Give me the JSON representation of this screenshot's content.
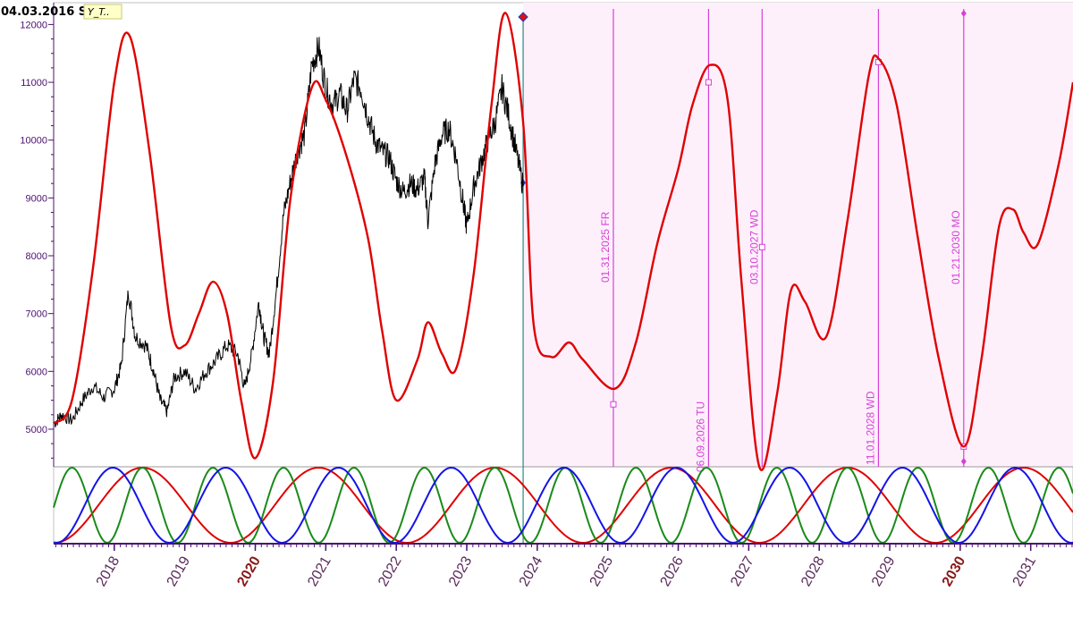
{
  "header": {
    "date_label": "04.03.2016 SU",
    "tag_label": "Y_T.."
  },
  "colors": {
    "price": "#000000",
    "cycle_composite": "#e00000",
    "wave_red": "#e00000",
    "wave_green": "#1a8a1a",
    "wave_blue": "#1414e6",
    "forecast_bg": "#fdf0fb",
    "marker_line": "#d640d6",
    "axis": "#4a1070",
    "now_line": "#2a8a8a"
  },
  "chart_data": {
    "type": "line",
    "x_axis": {
      "type": "time",
      "range": [
        2017.14,
        2031.6
      ],
      "ticks": [
        "2018",
        "2019",
        "2020",
        "2021",
        "2022",
        "2023",
        "2024",
        "2025",
        "2026",
        "2027",
        "2028",
        "2029",
        "2030",
        "2031"
      ],
      "bold_ticks": [
        "2020",
        "2030"
      ]
    },
    "y_axis": {
      "range": [
        4350,
        12300
      ],
      "ticks": [
        5000,
        6000,
        7000,
        8000,
        9000,
        10000,
        11000,
        12000
      ]
    },
    "grid": false,
    "now_x": 2023.8,
    "forecast_shaded_from": 2023.8,
    "series": [
      {
        "kind": "price",
        "points": [
          [
            2017.15,
            5100
          ],
          [
            2017.25,
            5250
          ],
          [
            2017.4,
            5150
          ],
          [
            2017.55,
            5500
          ],
          [
            2017.7,
            5750
          ],
          [
            2017.85,
            5550
          ],
          [
            2018.0,
            5700
          ],
          [
            2018.1,
            6100
          ],
          [
            2018.2,
            7400
          ],
          [
            2018.3,
            6600
          ],
          [
            2018.45,
            6450
          ],
          [
            2018.55,
            6050
          ],
          [
            2018.65,
            5500
          ],
          [
            2018.75,
            5300
          ],
          [
            2018.85,
            5900
          ],
          [
            2019.0,
            6000
          ],
          [
            2019.15,
            5700
          ],
          [
            2019.3,
            6000
          ],
          [
            2019.45,
            6200
          ],
          [
            2019.6,
            6450
          ],
          [
            2019.75,
            6300
          ],
          [
            2019.85,
            5700
          ],
          [
            2019.95,
            6300
          ],
          [
            2020.05,
            7200
          ],
          [
            2020.12,
            6600
          ],
          [
            2020.2,
            6300
          ],
          [
            2020.3,
            7400
          ],
          [
            2020.4,
            8700
          ],
          [
            2020.5,
            9300
          ],
          [
            2020.6,
            9800
          ],
          [
            2020.7,
            10100
          ],
          [
            2020.8,
            11300
          ],
          [
            2020.9,
            11600
          ],
          [
            2021.0,
            10900
          ],
          [
            2021.1,
            10600
          ],
          [
            2021.2,
            10800
          ],
          [
            2021.3,
            10500
          ],
          [
            2021.4,
            11050
          ],
          [
            2021.5,
            10900
          ],
          [
            2021.6,
            10400
          ],
          [
            2021.7,
            10000
          ],
          [
            2021.8,
            9800
          ],
          [
            2021.9,
            9700
          ],
          [
            2022.0,
            9300
          ],
          [
            2022.1,
            9100
          ],
          [
            2022.2,
            9250
          ],
          [
            2022.3,
            9150
          ],
          [
            2022.4,
            9350
          ],
          [
            2022.45,
            8600
          ],
          [
            2022.55,
            9600
          ],
          [
            2022.65,
            10100
          ],
          [
            2022.75,
            10200
          ],
          [
            2022.85,
            9700
          ],
          [
            2022.95,
            8900
          ],
          [
            2023.0,
            8500
          ],
          [
            2023.1,
            9200
          ],
          [
            2023.2,
            9600
          ],
          [
            2023.3,
            10000
          ],
          [
            2023.4,
            10300
          ],
          [
            2023.5,
            10900
          ],
          [
            2023.6,
            10400
          ],
          [
            2023.7,
            9800
          ],
          [
            2023.8,
            9200
          ]
        ]
      },
      {
        "kind": "cycle_composite",
        "points": [
          [
            2017.14,
            5100
          ],
          [
            2017.4,
            5500
          ],
          [
            2017.7,
            7800
          ],
          [
            2018.0,
            11000
          ],
          [
            2018.22,
            11800
          ],
          [
            2018.5,
            9800
          ],
          [
            2018.8,
            6800
          ],
          [
            2019.0,
            6450
          ],
          [
            2019.2,
            7000
          ],
          [
            2019.4,
            7550
          ],
          [
            2019.6,
            7000
          ],
          [
            2019.8,
            5500
          ],
          [
            2020.0,
            4500
          ],
          [
            2020.25,
            5800
          ],
          [
            2020.5,
            9000
          ],
          [
            2020.8,
            10900
          ],
          [
            2021.0,
            10700
          ],
          [
            2021.3,
            9700
          ],
          [
            2021.6,
            8300
          ],
          [
            2021.8,
            6700
          ],
          [
            2022.0,
            5500
          ],
          [
            2022.3,
            6200
          ],
          [
            2022.45,
            6850
          ],
          [
            2022.65,
            6300
          ],
          [
            2022.85,
            6050
          ],
          [
            2023.1,
            7700
          ],
          [
            2023.35,
            10600
          ],
          [
            2023.55,
            12200
          ],
          [
            2023.8,
            10300
          ],
          [
            2023.95,
            6800
          ],
          [
            2024.2,
            6250
          ],
          [
            2024.45,
            6500
          ],
          [
            2024.65,
            6200
          ],
          [
            2025.1,
            5700
          ],
          [
            2025.4,
            6500
          ],
          [
            2025.7,
            8200
          ],
          [
            2026.0,
            9500
          ],
          [
            2026.2,
            10600
          ],
          [
            2026.45,
            11300
          ],
          [
            2026.7,
            10700
          ],
          [
            2026.9,
            7500
          ],
          [
            2027.15,
            4350
          ],
          [
            2027.4,
            5600
          ],
          [
            2027.6,
            7400
          ],
          [
            2027.8,
            7200
          ],
          [
            2028.1,
            6600
          ],
          [
            2028.4,
            8600
          ],
          [
            2028.7,
            11100
          ],
          [
            2028.85,
            11400
          ],
          [
            2029.1,
            10600
          ],
          [
            2029.4,
            8300
          ],
          [
            2029.7,
            6200
          ],
          [
            2030.05,
            4700
          ],
          [
            2030.3,
            6200
          ],
          [
            2030.55,
            8500
          ],
          [
            2030.75,
            8800
          ],
          [
            2030.9,
            8400
          ],
          [
            2031.1,
            8200
          ],
          [
            2031.4,
            9600
          ],
          [
            2031.6,
            11000
          ]
        ]
      }
    ],
    "cycle_waves": [
      {
        "name_color": "red",
        "period_years": 2.5,
        "peak_year": 2018.4
      },
      {
        "name_color": "green",
        "period_years": 1.0,
        "peak_year": 2018.4
      },
      {
        "name_color": "blue",
        "period_years": 1.6,
        "peak_year": 2017.98
      }
    ],
    "annotations": [
      {
        "x": 2025.08,
        "label": "01.31.2025 FR",
        "value": 5430
      },
      {
        "x": 2026.43,
        "label": "06.09.2026 TU",
        "value": 11000
      },
      {
        "x": 2027.19,
        "label": "03.10.2027 WD",
        "value": 8150
      },
      {
        "x": 2028.84,
        "label": "11.01.2028 WD",
        "value": 11350
      },
      {
        "x": 2030.05,
        "label": "01.21.2030 MO",
        "value": 4700
      }
    ]
  }
}
